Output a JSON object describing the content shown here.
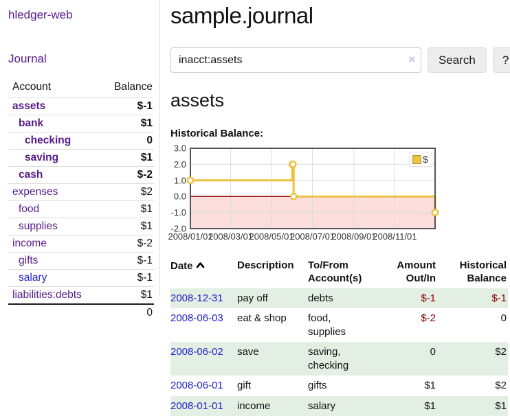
{
  "colors": {
    "link_purple": "#551a8b",
    "link_blue": "#2323cc",
    "negative_strong": "#8b0000",
    "negative_soft": "#c08383",
    "row_stripe_green": "#e2efe2",
    "series_gold": "#edc240"
  },
  "app": {
    "brand": "hledger-web"
  },
  "sidebar": {
    "journal_link": "Journal",
    "header": {
      "account": "Account",
      "balance": "Balance"
    },
    "accounts": [
      {
        "name": "assets",
        "depth": 0,
        "bold": true,
        "balance": "$-1"
      },
      {
        "name": "bank",
        "depth": 1,
        "bold": true,
        "balance": "$1"
      },
      {
        "name": "checking",
        "depth": 2,
        "bold": true,
        "balance": "0"
      },
      {
        "name": "saving",
        "depth": 2,
        "bold": true,
        "balance": "$1"
      },
      {
        "name": "cash",
        "depth": 1,
        "bold": true,
        "balance": "$-2"
      },
      {
        "name": "expenses",
        "depth": 0,
        "bold": false,
        "balance": "$2"
      },
      {
        "name": "food",
        "depth": 1,
        "bold": false,
        "balance": "$1"
      },
      {
        "name": "supplies",
        "depth": 1,
        "bold": false,
        "balance": "$1"
      },
      {
        "name": "income",
        "depth": 0,
        "bold": false,
        "balance": "$-2"
      },
      {
        "name": "gifts",
        "depth": 1,
        "bold": false,
        "balance": "$-1"
      },
      {
        "name": "salary",
        "depth": 1,
        "bold": false,
        "balance": "$-1",
        "blue": true
      },
      {
        "name": "liabilities:debts",
        "depth": 0,
        "bold": false,
        "balance": "$1"
      }
    ],
    "total": "0"
  },
  "header": {
    "title": "sample.journal"
  },
  "search": {
    "value": "inacct:assets",
    "clear_icon": "×",
    "button_label": "Search",
    "help_label": "?"
  },
  "account_page": {
    "title": "assets",
    "chart_label": "Historical Balance:"
  },
  "chart_data": {
    "type": "line",
    "style": "step",
    "title": "Historical Balance:",
    "ylim": [
      -2,
      3
    ],
    "x_range": [
      "2008-01-01",
      "2008-12-31"
    ],
    "y_ticks": [
      3.0,
      2.0,
      1.0,
      0.0,
      -1.0,
      -2.0
    ],
    "y_tick_labels": [
      "3.0",
      "2.0",
      "1.0",
      "0.0",
      "-1.0",
      "-2.0"
    ],
    "x_ticks": [
      {
        "date": "2008-01-01",
        "label": "2008/01/01"
      },
      {
        "date": "2008-03-01",
        "label": "2008/03/01"
      },
      {
        "date": "2008-05-01",
        "label": "2008/05/01"
      },
      {
        "date": "2008-07-01",
        "label": "2008/07/01"
      },
      {
        "date": "2008-09-01",
        "label": "2008/09/01"
      },
      {
        "date": "2008-11-01",
        "label": "2008/11/01"
      }
    ],
    "series": [
      {
        "name": "$",
        "color": "#edc240",
        "marker": "circle-open",
        "points": [
          [
            "2008-01-01",
            1
          ],
          [
            "2008-06-01",
            2
          ],
          [
            "2008-06-02",
            2
          ],
          [
            "2008-06-03",
            0
          ],
          [
            "2008-12-31",
            -1
          ]
        ]
      }
    ],
    "legend": {
      "label": "$",
      "position": "top-right"
    },
    "grid": true,
    "zero_line_color": "#9e1212",
    "negative_region_color": "#fcdedc",
    "grid_color": "#dddddd",
    "border_color": "#545454"
  },
  "table": {
    "headers": {
      "date": "Date",
      "description": "Description",
      "accounts": "To/From Account(s)",
      "amount": "Amount Out/In",
      "balance": "Historical Balance"
    },
    "rows": [
      {
        "date": "2008-12-31",
        "description": "pay off",
        "accounts": "debts",
        "amount": "$-1",
        "balance": "$-1"
      },
      {
        "date": "2008-06-03",
        "description": "eat & shop",
        "accounts": "food, supplies",
        "amount": "$-2",
        "balance": "0"
      },
      {
        "date": "2008-06-02",
        "description": "save",
        "accounts": "saving, checking",
        "amount": "0",
        "balance": "$2"
      },
      {
        "date": "2008-06-01",
        "description": "gift",
        "accounts": "gifts",
        "amount": "$1",
        "balance": "$2"
      },
      {
        "date": "2008-01-01",
        "description": "income",
        "accounts": "salary",
        "amount": "$1",
        "balance": "$1"
      }
    ]
  }
}
